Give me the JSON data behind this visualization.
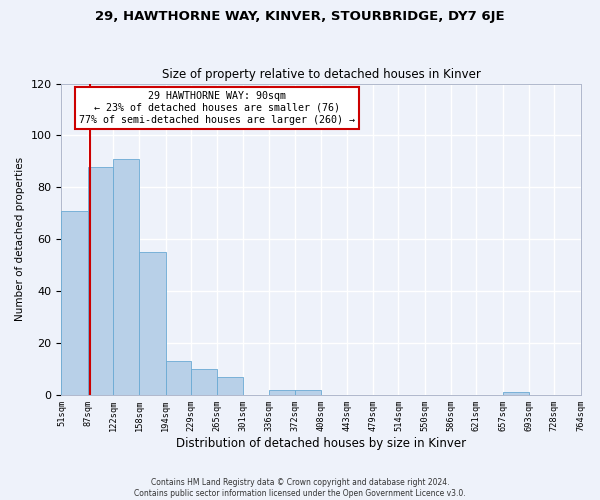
{
  "title": "29, HAWTHORNE WAY, KINVER, STOURBRIDGE, DY7 6JE",
  "subtitle": "Size of property relative to detached houses in Kinver",
  "xlabel": "Distribution of detached houses by size in Kinver",
  "ylabel": "Number of detached properties",
  "bar_heights": [
    71,
    88,
    91,
    55,
    13,
    10,
    7,
    0,
    2,
    2,
    0,
    0,
    0,
    0,
    0,
    0,
    0,
    1,
    0,
    0
  ],
  "bin_edges": [
    51,
    87,
    122,
    158,
    194,
    229,
    265,
    301,
    336,
    372,
    408,
    443,
    479,
    514,
    550,
    586,
    621,
    657,
    693,
    728,
    764
  ],
  "bin_labels": [
    "51sqm",
    "87sqm",
    "122sqm",
    "158sqm",
    "194sqm",
    "229sqm",
    "265sqm",
    "301sqm",
    "336sqm",
    "372sqm",
    "408sqm",
    "443sqm",
    "479sqm",
    "514sqm",
    "550sqm",
    "586sqm",
    "621sqm",
    "657sqm",
    "693sqm",
    "728sqm",
    "764sqm"
  ],
  "bar_color": "#b8d0e8",
  "bar_edge_color": "#6aaad4",
  "vline_x": 90,
  "vline_color": "#cc0000",
  "ylim": [
    0,
    120
  ],
  "yticks": [
    0,
    20,
    40,
    60,
    80,
    100,
    120
  ],
  "annotation_text": "29 HAWTHORNE WAY: 90sqm\n← 23% of detached houses are smaller (76)\n77% of semi-detached houses are larger (260) →",
  "annotation_box_color": "#ffffff",
  "annotation_box_edge": "#cc0000",
  "footer_text": "Contains HM Land Registry data © Crown copyright and database right 2024.\nContains public sector information licensed under the Open Government Licence v3.0.",
  "bg_color": "#eef2fa",
  "grid_color": "#ffffff",
  "title_fontsize": 9.5,
  "subtitle_fontsize": 8.5
}
